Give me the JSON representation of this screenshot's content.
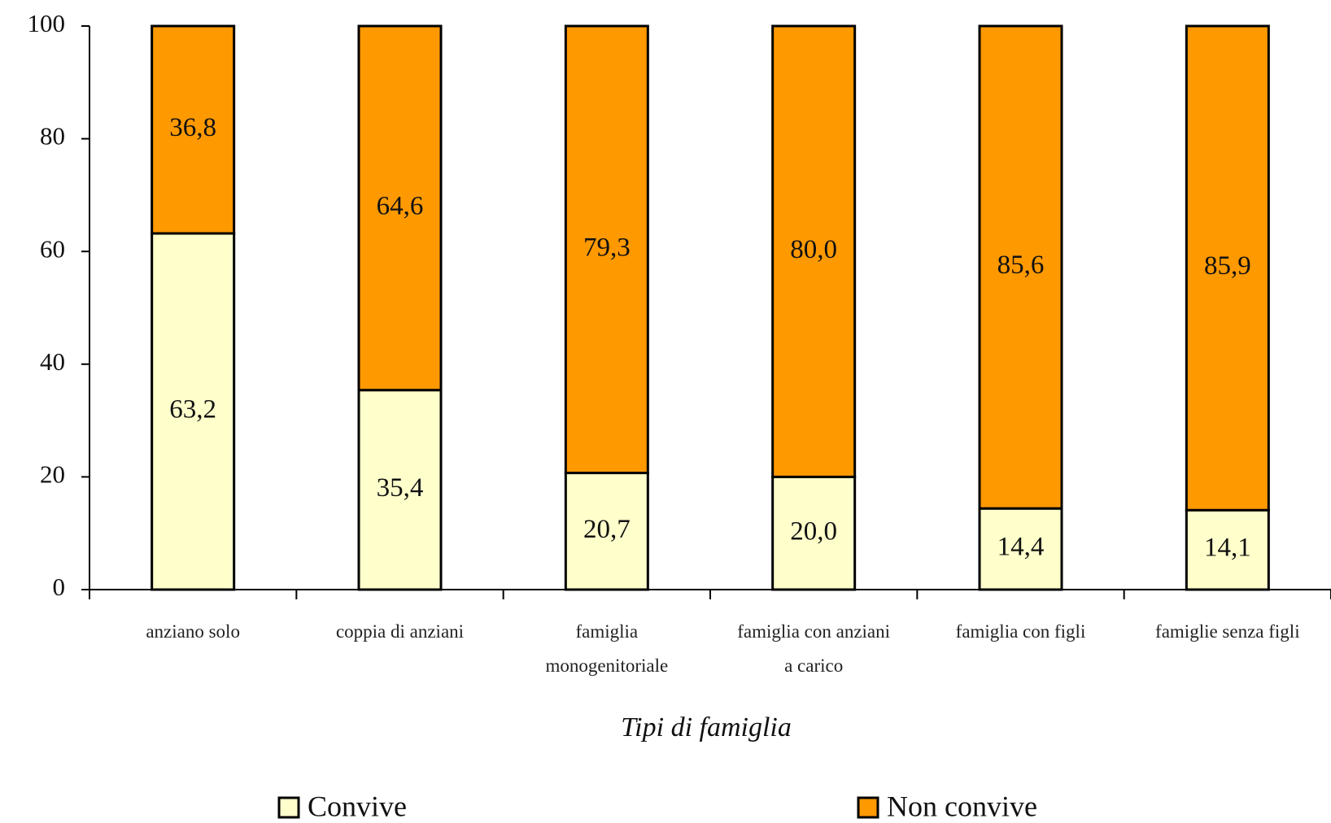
{
  "chart_data": {
    "type": "stacked_bar",
    "x_label": "Tipi di famiglia",
    "categories": [
      "anziano solo",
      "coppia di anziani",
      "famiglia monogenitoriale",
      "famiglia con anziani a carico",
      "famiglia con figli",
      "famiglie senza figli"
    ],
    "series": [
      {
        "name": "Convive",
        "color": "#ffffcc",
        "values": [
          63.2,
          35.4,
          20.7,
          20.0,
          14.4,
          14.1
        ],
        "value_labels": [
          "63,2",
          "35,4",
          "20,7",
          "20,0",
          "14,4",
          "14,1"
        ]
      },
      {
        "name": "Non convive",
        "color": "#ff9900",
        "values": [
          36.8,
          64.6,
          79.3,
          80.0,
          85.6,
          85.9
        ],
        "value_labels": [
          "36,8",
          "64,6",
          "79,3",
          "80,0",
          "85,6",
          "85,9"
        ]
      }
    ],
    "ylim": [
      0,
      100
    ],
    "yticks": [
      0,
      20,
      40,
      60,
      80,
      100
    ],
    "legend": "bottom"
  }
}
